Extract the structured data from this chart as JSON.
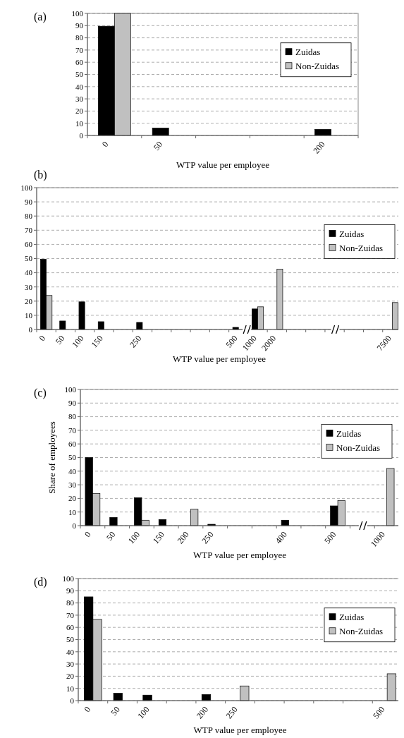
{
  "chart_data": [
    {
      "type": "bar",
      "title": "(a)",
      "xlabel": "WTP value per employee",
      "categories": [
        "0",
        "50",
        null,
        null,
        "200"
      ],
      "series": [
        {
          "name": "Zuidas",
          "color": "#000000",
          "values": [
            89.5,
            6,
            null,
            null,
            5
          ]
        },
        {
          "name": "Non-Zuidas",
          "color": "#c0c0c0",
          "values": [
            100,
            null,
            null,
            null,
            null
          ]
        }
      ],
      "ylim": [
        0,
        100
      ],
      "yticks": [
        0,
        10,
        20,
        30,
        40,
        50,
        60,
        70,
        80,
        90,
        100
      ],
      "grid": "y",
      "legend": "right"
    },
    {
      "type": "bar",
      "title": "(b)",
      "xlabel": "WTP value per employee",
      "categories": [
        "0",
        "50",
        "100",
        "150",
        null,
        "250",
        null,
        null,
        null,
        null,
        "500",
        "1000",
        "2000",
        null,
        null,
        null,
        null,
        null,
        "7500"
      ],
      "series": [
        {
          "name": "Zuidas",
          "color": "#000000",
          "values": [
            49.5,
            6,
            19.5,
            5.5,
            null,
            5,
            null,
            null,
            null,
            null,
            1.5,
            14.5,
            null,
            null,
            null,
            null,
            null,
            null,
            null
          ]
        },
        {
          "name": "Non-Zuidas",
          "color": "#c0c0c0",
          "values": [
            24,
            null,
            null,
            null,
            null,
            null,
            null,
            null,
            null,
            null,
            null,
            16,
            42.5,
            null,
            null,
            null,
            null,
            null,
            19
          ]
        }
      ],
      "ylim": [
        0,
        100
      ],
      "yticks": [
        0,
        10,
        20,
        30,
        40,
        50,
        60,
        70,
        80,
        90,
        100
      ],
      "grid": "y",
      "legend": "right"
    },
    {
      "type": "bar",
      "title": "(c)",
      "xlabel": "WTP value per employee",
      "ylabel": "Share of employees",
      "categories": [
        "0",
        "50",
        "100",
        "150",
        "200",
        "250",
        null,
        null,
        "400",
        null,
        "500",
        null,
        "1000"
      ],
      "series": [
        {
          "name": "Zuidas",
          "color": "#000000",
          "values": [
            50,
            6,
            20.5,
            4.5,
            null,
            1,
            null,
            null,
            4,
            null,
            14.5,
            null,
            null
          ]
        },
        {
          "name": "Non-Zuidas",
          "color": "#c0c0c0",
          "values": [
            23.5,
            null,
            4,
            null,
            12,
            null,
            null,
            null,
            null,
            null,
            18.5,
            null,
            42
          ]
        }
      ],
      "ylim": [
        0,
        100
      ],
      "yticks": [
        0,
        10,
        20,
        30,
        40,
        50,
        60,
        70,
        80,
        90,
        100
      ],
      "grid": "y",
      "legend": "right"
    },
    {
      "type": "bar",
      "title": "(d)",
      "xlabel": "WTP value per employee",
      "categories": [
        "0",
        "50",
        "100",
        null,
        "200",
        "250",
        null,
        null,
        null,
        null,
        "500"
      ],
      "series": [
        {
          "name": "Zuidas",
          "color": "#000000",
          "values": [
            85,
            6,
            4.5,
            null,
            5,
            null,
            null,
            null,
            null,
            null,
            null
          ]
        },
        {
          "name": "Non-Zuidas",
          "color": "#c0c0c0",
          "values": [
            66.5,
            null,
            null,
            null,
            null,
            12,
            null,
            null,
            null,
            null,
            22
          ]
        }
      ],
      "ylim": [
        0,
        100
      ],
      "yticks": [
        0,
        10,
        20,
        30,
        40,
        50,
        60,
        70,
        80,
        90,
        100
      ],
      "grid": "y",
      "legend": "right"
    }
  ]
}
